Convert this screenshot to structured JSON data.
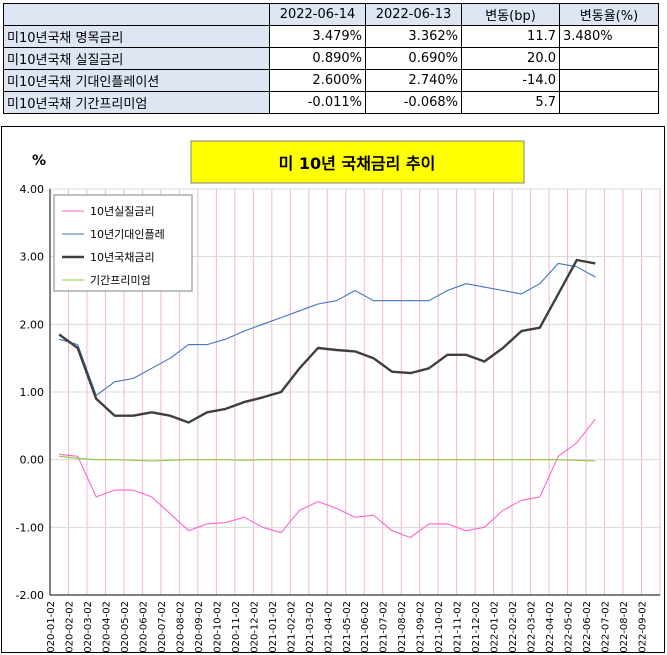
{
  "table": {
    "headers": [
      "",
      "2022-06-14",
      "2022-06-13",
      "변동(bp)",
      "변동율(%)"
    ],
    "rows": [
      {
        "label": "미10년국채 명목금리",
        "d1": "3.479%",
        "d2": "3.362%",
        "bp": "11.7",
        "pct": "3.480%"
      },
      {
        "label": "미10년국채 실질금리",
        "d1": "0.890%",
        "d2": "0.690%",
        "bp": "20.0",
        "pct": ""
      },
      {
        "label": "미10년국채 기대인플레이션",
        "d1": "2.600%",
        "d2": "2.740%",
        "bp": "-14.0",
        "pct": ""
      },
      {
        "label": "미10년국채 기간프리미엄",
        "d1": "-0.011%",
        "d2": "-0.068%",
        "bp": "5.7",
        "pct": ""
      }
    ]
  },
  "chart_data": {
    "type": "line",
    "title": "미 10년 국채금리 추이",
    "ylabel": "%",
    "ylim": [
      -2.0,
      4.0
    ],
    "yticks": [
      "4.00",
      "3.00",
      "2.00",
      "1.00",
      "0.00",
      "-1.00",
      "-2.00"
    ],
    "x_categories": [
      "2020-01-02",
      "2020-02-02",
      "2020-03-02",
      "2020-04-02",
      "2020-05-02",
      "2020-06-02",
      "2020-07-02",
      "2020-08-02",
      "2020-09-02",
      "2020-10-02",
      "2020-11-02",
      "2020-12-02",
      "2021-01-02",
      "2021-02-02",
      "2021-03-02",
      "2021-04-02",
      "2021-05-02",
      "2021-06-02",
      "2021-07-02",
      "2021-08-02",
      "2021-09-02",
      "2021-10-02",
      "2021-11-02",
      "2021-12-02",
      "2022-01-02",
      "2022-02-02",
      "2022-03-02",
      "2022-04-02",
      "2022-05-02",
      "2022-06-02",
      "2022-07-02",
      "2022-08-02",
      "2022-09-02"
    ],
    "grid": true,
    "legend_position": "top-left",
    "series": [
      {
        "name": "10년실질금리",
        "color": "#ff66cc",
        "values": [
          0.08,
          0.05,
          -0.55,
          -0.45,
          -0.45,
          -0.55,
          -0.8,
          -1.05,
          -0.95,
          -0.93,
          -0.85,
          -1.0,
          -1.08,
          -0.75,
          -0.62,
          -0.72,
          -0.85,
          -0.82,
          -1.05,
          -1.15,
          -0.95,
          -0.95,
          -1.05,
          -1.0,
          -0.75,
          -0.6,
          -0.55,
          0.05,
          0.25,
          0.6,
          null,
          null,
          null
        ]
      },
      {
        "name": "10년기대인플레",
        "color": "#3e75c4",
        "values": [
          1.78,
          1.7,
          0.95,
          1.15,
          1.2,
          1.35,
          1.5,
          1.7,
          1.7,
          1.78,
          1.9,
          2.0,
          2.1,
          2.2,
          2.3,
          2.35,
          2.5,
          2.35,
          2.35,
          2.35,
          2.35,
          2.5,
          2.6,
          2.55,
          2.5,
          2.45,
          2.6,
          2.9,
          2.85,
          2.7,
          null,
          null,
          null
        ]
      },
      {
        "name": "10년국채금리",
        "color": "#3f3f3f",
        "values": [
          1.85,
          1.65,
          0.9,
          0.65,
          0.65,
          0.7,
          0.65,
          0.55,
          0.7,
          0.75,
          0.85,
          0.92,
          1.0,
          1.35,
          1.65,
          1.62,
          1.6,
          1.5,
          1.3,
          1.28,
          1.35,
          1.55,
          1.55,
          1.45,
          1.65,
          1.9,
          1.95,
          2.45,
          2.95,
          2.9,
          null,
          null,
          null
        ]
      },
      {
        "name": "기간프리미엄",
        "color": "#8cc63f",
        "values": [
          0.05,
          0.02,
          0.0,
          0.0,
          -0.01,
          -0.02,
          -0.01,
          0.0,
          0.0,
          0.0,
          -0.01,
          0.0,
          0.0,
          0.0,
          0.0,
          0.0,
          0.0,
          0.0,
          0.0,
          0.0,
          0.0,
          0.0,
          0.0,
          0.0,
          0.0,
          0.0,
          0.0,
          0.0,
          -0.01,
          -0.02,
          null,
          null,
          null
        ]
      }
    ]
  }
}
